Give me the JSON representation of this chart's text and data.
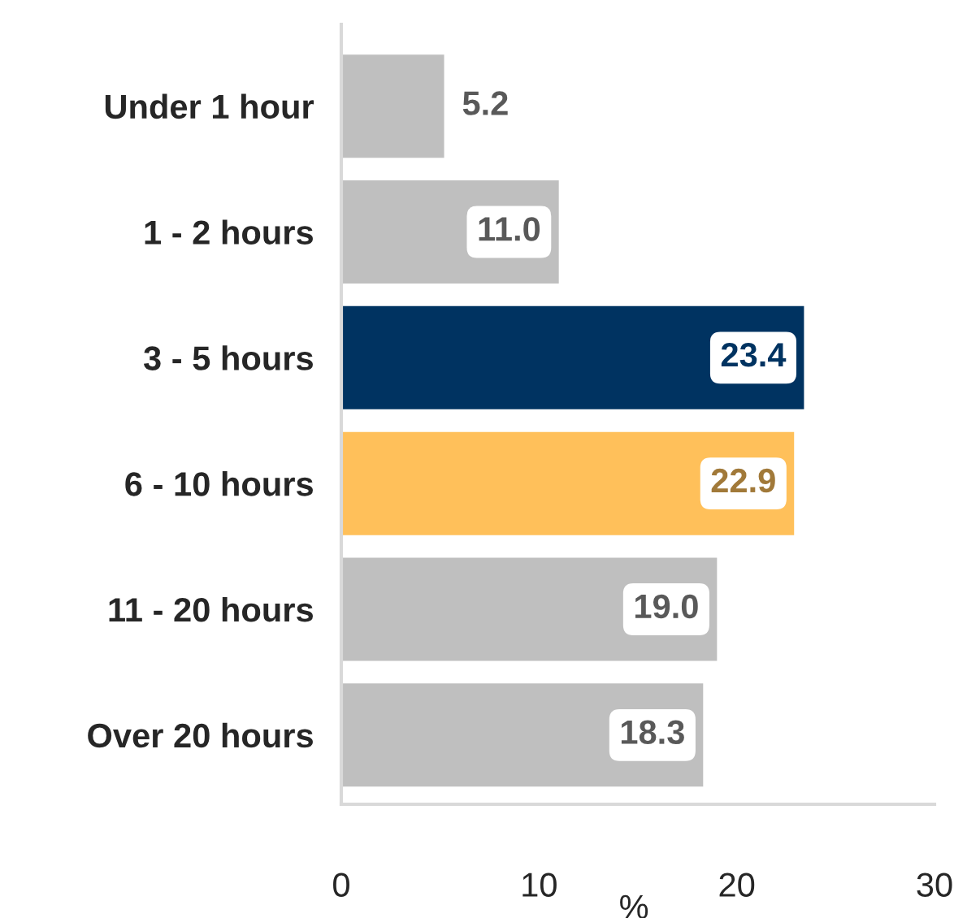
{
  "chart_data": {
    "type": "bar",
    "orientation": "horizontal",
    "xlabel": "%",
    "categories": [
      "Under 1 hour",
      "1 - 2 hours",
      "3 - 5 hours",
      "6 - 10 hours",
      "11 - 20 hours",
      "Over 20 hours"
    ],
    "values": [
      5.2,
      11.0,
      23.4,
      22.9,
      19.0,
      18.3
    ],
    "colors": [
      "#bfbfbf",
      "#bfbfbf",
      "#003361",
      "#ffc05a",
      "#bfbfbf",
      "#bfbfbf"
    ],
    "value_labels": [
      "5.2",
      "11.0",
      "23.4",
      "22.9",
      "19.0",
      "18.3"
    ],
    "xlim": [
      0,
      30
    ],
    "xticks": [
      0,
      10,
      20,
      30
    ],
    "grid": false,
    "legend": false
  }
}
